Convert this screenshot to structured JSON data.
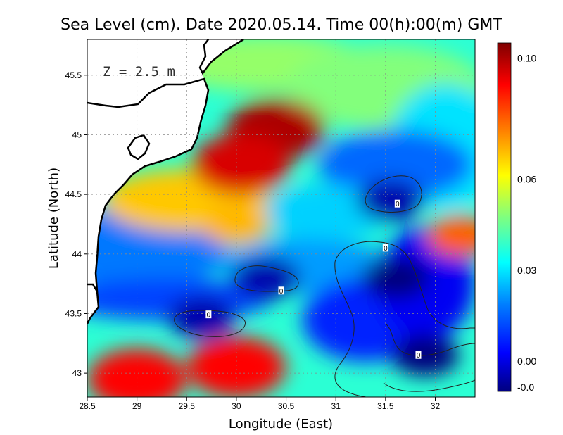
{
  "chart_data": {
    "type": "heatmap",
    "title": "Sea Level (cm). Date 2020.05.14. Time 00(h):00(m) GMT",
    "xlabel": "Longitude (East)",
    "ylabel": "Latitude (North)",
    "annotation": "Z = 2.5 m",
    "xlim": [
      28.5,
      32.4
    ],
    "ylim": [
      42.8,
      45.8
    ],
    "x_ticks": [
      28.5,
      29,
      29.5,
      30,
      30.5,
      31,
      31.5,
      32
    ],
    "x_tick_labels": [
      "28.5",
      "29",
      "29.5",
      "30",
      "30.5",
      "31",
      "31.5",
      "32"
    ],
    "y_ticks": [
      43,
      43.5,
      44,
      44.5,
      45,
      45.5
    ],
    "y_tick_labels": [
      "43",
      "43.5",
      "44",
      "44.5",
      "45",
      "45.5"
    ],
    "grid": true,
    "colorbar": {
      "range": [
        -0.01,
        0.105
      ],
      "ticks": [
        0.1,
        0.06,
        0.03,
        0.0,
        -0.01
      ],
      "tick_labels": [
        "0.10",
        "0.06",
        "0.03",
        "0.00",
        "-0.0"
      ],
      "colormap": [
        "#00007f",
        "#0000ff",
        "#007fff",
        "#00ffff",
        "#7fff7f",
        "#ffff00",
        "#ff7f00",
        "#ff0000",
        "#7f0000"
      ]
    },
    "contour_level": 0,
    "contour_labels": [
      {
        "text": "0",
        "lon": 31.62,
        "lat": 44.42
      },
      {
        "text": "0",
        "lon": 31.5,
        "lat": 44.05
      },
      {
        "text": "0",
        "lon": 30.45,
        "lat": 43.69
      },
      {
        "text": "0",
        "lon": 29.72,
        "lat": 43.49
      },
      {
        "text": "0",
        "lon": 31.83,
        "lat": 43.15
      }
    ],
    "features": [
      {
        "name": "positive anomaly",
        "lon": 30.4,
        "lat": 45.05,
        "value": 0.1
      },
      {
        "name": "positive anomaly",
        "lon": 30.05,
        "lat": 44.75,
        "value": 0.095
      },
      {
        "name": "positive anomaly",
        "lon": 30.0,
        "lat": 43.05,
        "value": 0.09
      },
      {
        "name": "positive anomaly",
        "lon": 29.0,
        "lat": 42.95,
        "value": 0.09
      },
      {
        "name": "positive anomaly",
        "lon": 30.0,
        "lat": 44.25,
        "value": 0.07
      },
      {
        "name": "positive anomaly",
        "lon": 32.25,
        "lat": 44.15,
        "value": 0.08
      },
      {
        "name": "negative anomaly",
        "lon": 31.6,
        "lat": 43.8,
        "value": -0.012
      },
      {
        "name": "negative anomaly",
        "lon": 31.9,
        "lat": 43.15,
        "value": -0.012
      },
      {
        "name": "negative anomaly",
        "lon": 31.55,
        "lat": 44.45,
        "value": -0.005
      },
      {
        "name": "negative anomaly",
        "lon": 30.3,
        "lat": 43.8,
        "value": -0.005
      },
      {
        "name": "negative anomaly",
        "lon": 29.65,
        "lat": 43.47,
        "value": -0.005
      }
    ]
  }
}
